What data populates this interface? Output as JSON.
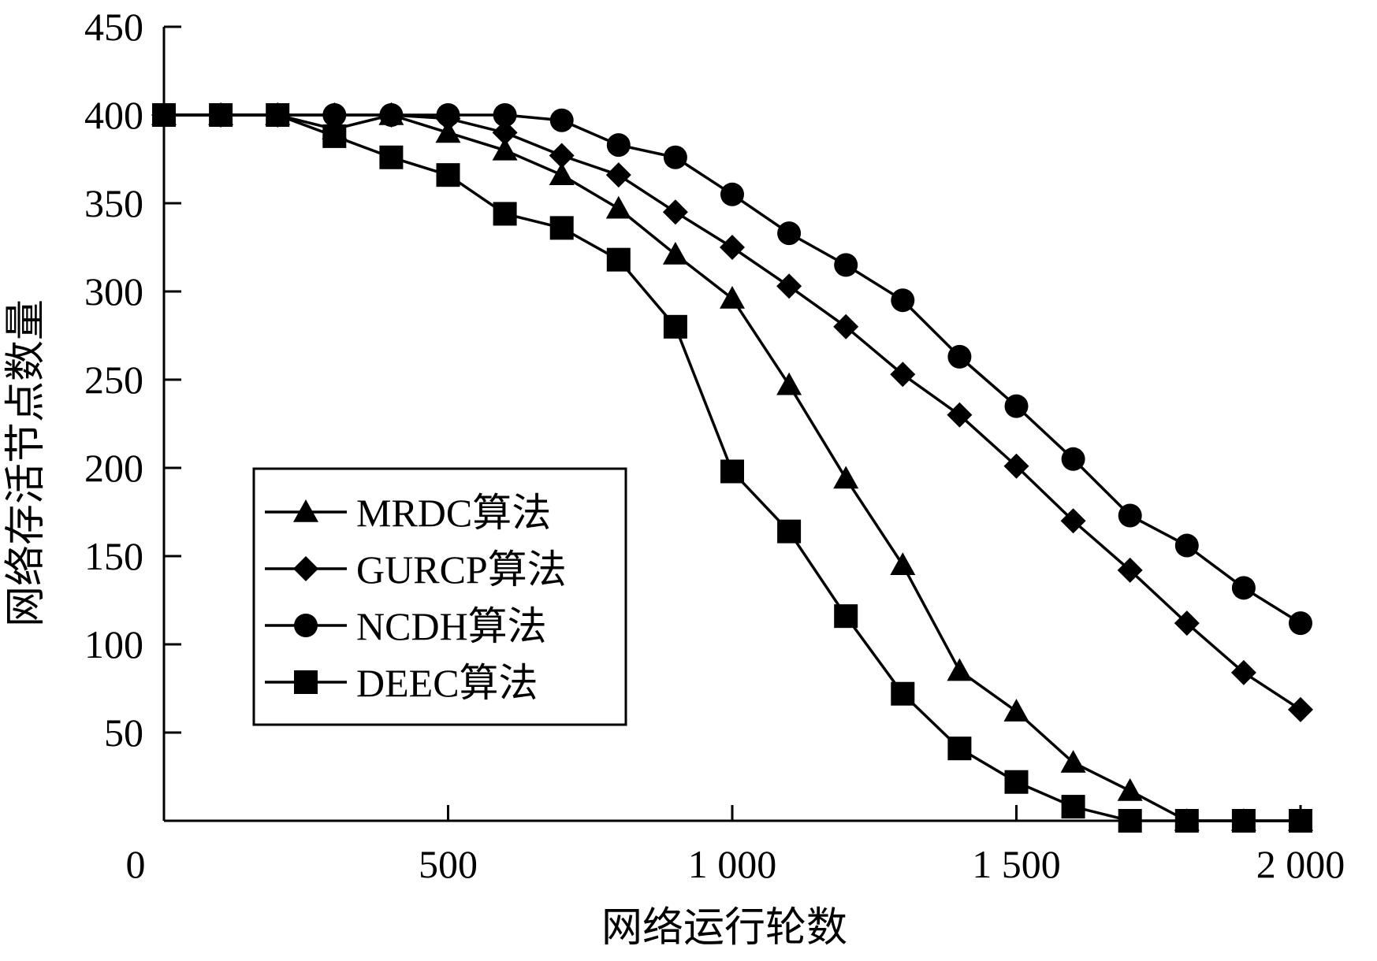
{
  "chart_data": {
    "type": "line",
    "xlabel": "网络运行轮数",
    "ylabel": "网络存活节点数量",
    "xlim": [
      0,
      2000
    ],
    "ylim": [
      0,
      450
    ],
    "x_ticks": [
      0,
      500,
      1000,
      1500,
      2000
    ],
    "x_tick_labels": [
      "0",
      "500",
      "1 000",
      "1 500",
      "2 000"
    ],
    "y_ticks": [
      50,
      100,
      150,
      200,
      250,
      300,
      350,
      400,
      450
    ],
    "y_tick_labels": [
      "50",
      "100",
      "150",
      "200",
      "250",
      "300",
      "350",
      "400",
      "450"
    ],
    "grid": false,
    "legend_position": "center-left",
    "x": [
      0,
      100,
      200,
      300,
      400,
      500,
      600,
      700,
      800,
      900,
      1000,
      1100,
      1200,
      1300,
      1400,
      1500,
      1600,
      1700,
      1800,
      1900,
      2000
    ],
    "series": [
      {
        "name": "MRDC算法",
        "marker": "triangle",
        "values": [
          400,
          400,
          400,
          392,
          400,
          390,
          380,
          366,
          347,
          321,
          296,
          247,
          194,
          145,
          85,
          62,
          33,
          17,
          0,
          0,
          0
        ]
      },
      {
        "name": "GURCP算法",
        "marker": "diamond",
        "values": [
          400,
          400,
          400,
          400,
          400,
          398,
          390,
          377,
          366,
          345,
          325,
          303,
          280,
          253,
          230,
          201,
          170,
          142,
          112,
          84,
          63
        ]
      },
      {
        "name": "NCDH算法",
        "marker": "circle",
        "values": [
          400,
          400,
          400,
          400,
          400,
          400,
          400,
          397,
          383,
          376,
          355,
          333,
          315,
          295,
          263,
          235,
          205,
          173,
          156,
          132,
          112
        ]
      },
      {
        "name": "DEEC算法",
        "marker": "square",
        "values": [
          400,
          400,
          400,
          388,
          376,
          366,
          344,
          336,
          318,
          280,
          198,
          164,
          116,
          72,
          41,
          22,
          8,
          0,
          0,
          0,
          0
        ]
      }
    ],
    "colors": {
      "line": "#000000",
      "background": "#ffffff"
    }
  }
}
